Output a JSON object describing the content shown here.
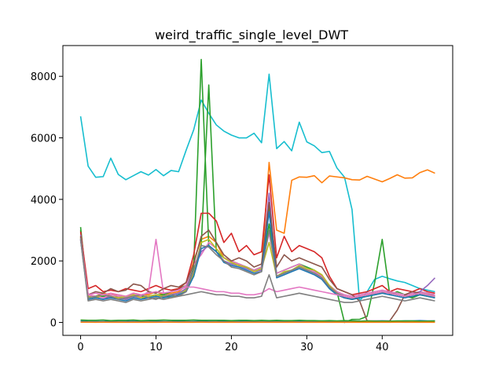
{
  "chart_data": {
    "type": "line",
    "title": "weird_traffic_single_level_DWT",
    "xlabel": "",
    "ylabel": "",
    "xlim": [
      -2.35,
      49.35
    ],
    "ylim": [
      -420,
      9000
    ],
    "xticks": [
      0,
      10,
      20,
      30,
      40
    ],
    "yticks": [
      0,
      2000,
      4000,
      6000,
      8000
    ],
    "xtick_labels": [
      "0",
      "10",
      "20",
      "30",
      "40"
    ],
    "ytick_labels": [
      "0",
      "2000",
      "4000",
      "6000",
      "8000"
    ],
    "grid": false,
    "legend": "none",
    "series": [
      {
        "color": "#17becf",
        "values": [
          6700,
          5080,
          4720,
          4740,
          5340,
          4810,
          4640,
          4770,
          4900,
          4790,
          4970,
          4770,
          4940,
          4900,
          5600,
          6260,
          7230,
          6800,
          6420,
          6220,
          6090,
          6000,
          6000,
          6150,
          5840,
          8070,
          5650,
          5880,
          5580,
          6510,
          5870,
          5740,
          5520,
          5560,
          5020,
          4720,
          3670,
          700,
          1000,
          1400,
          1500,
          1420,
          1350,
          1300,
          1200,
          1100,
          1050,
          1000
        ]
      },
      {
        "color": "#ff7f0e",
        "values": [
          2800,
          900,
          850,
          950,
          900,
          900,
          850,
          950,
          900,
          900,
          1000,
          900,
          950,
          1000,
          1200,
          2000,
          2700,
          2800,
          2600,
          2100,
          2000,
          1900,
          1800,
          1700,
          1800,
          5200,
          3000,
          2900,
          4620,
          4730,
          4720,
          4770,
          4540,
          4760,
          4730,
          4700,
          4640,
          4630,
          4750,
          4660,
          4570,
          4680,
          4800,
          4690,
          4700,
          4870,
          4960,
          4850
        ]
      },
      {
        "color": "#2ca02c",
        "values": [
          3000,
          800,
          850,
          900,
          800,
          850,
          800,
          900,
          850,
          850,
          900,
          900,
          1000,
          1100,
          1200,
          1800,
          8550,
          2500,
          2300,
          2100,
          2000,
          1900,
          1800,
          1700,
          1800,
          3200,
          1600,
          1700,
          1800,
          1900,
          1800,
          1700,
          1500,
          1200,
          1000,
          0,
          100,
          100,
          200,
          1300,
          2700,
          900,
          1000,
          900,
          800,
          1000,
          950,
          850
        ]
      },
      {
        "color": "#2ca02c",
        "values": [
          3100,
          750,
          800,
          850,
          800,
          800,
          750,
          850,
          800,
          800,
          850,
          800,
          900,
          950,
          1100,
          1500,
          2500,
          7720,
          2300,
          2000,
          1900,
          1850,
          1800,
          1700,
          1800,
          3800,
          1500,
          1600,
          1700,
          1800,
          1700,
          1600,
          1500,
          1100,
          900,
          800,
          750,
          800,
          850,
          900,
          950,
          1000,
          900,
          850,
          800,
          900,
          850,
          800
        ]
      },
      {
        "color": "#d62728",
        "values": [
          2950,
          1100,
          1200,
          1000,
          1050,
          1000,
          1100,
          1050,
          1000,
          1100,
          1200,
          1100,
          1050,
          1100,
          1300,
          2200,
          3550,
          3550,
          3300,
          2600,
          2900,
          2300,
          2500,
          2200,
          2300,
          4800,
          2100,
          2800,
          2300,
          2500,
          2400,
          2300,
          2100,
          1500,
          1100,
          1000,
          900,
          950,
          1000,
          1100,
          1200,
          1000,
          1100,
          1050,
          1000,
          1100,
          1000,
          950
        ]
      },
      {
        "color": "#e377c2",
        "values": [
          2700,
          900,
          850,
          800,
          900,
          850,
          800,
          900,
          850,
          1000,
          2700,
          950,
          1000,
          1050,
          1200,
          1900,
          2200,
          2600,
          2400,
          2100,
          2000,
          1900,
          1800,
          1700,
          1800,
          2900,
          1600,
          1700,
          1800,
          1900,
          1750,
          1650,
          1500,
          1200,
          1000,
          900,
          850,
          900,
          950,
          1000,
          1050,
          1000,
          950,
          900,
          950,
          1000,
          950,
          900
        ]
      },
      {
        "color": "#9467bd",
        "values": [
          2850,
          850,
          800,
          750,
          850,
          800,
          750,
          850,
          800,
          850,
          900,
          850,
          900,
          950,
          1100,
          1700,
          2300,
          2500,
          2300,
          2000,
          1900,
          1850,
          1750,
          1650,
          1700,
          4200,
          1500,
          1600,
          1700,
          1800,
          1700,
          1600,
          1450,
          1150,
          950,
          850,
          800,
          850,
          900,
          950,
          1000,
          950,
          900,
          850,
          900,
          1000,
          1200,
          1450
        ]
      },
      {
        "color": "#8c564b",
        "values": [
          2800,
          900,
          1000,
          950,
          1100,
          1000,
          1050,
          1250,
          1200,
          1000,
          950,
          1100,
          1200,
          1150,
          1300,
          1900,
          2800,
          3000,
          2600,
          2200,
          2000,
          2100,
          2000,
          1800,
          1900,
          3900,
          1800,
          2200,
          2000,
          2100,
          2000,
          1900,
          1800,
          1400,
          1100,
          1000,
          900,
          700,
          50,
          50,
          50,
          50,
          400,
          900,
          1000,
          950,
          900,
          850
        ]
      },
      {
        "color": "#bcbd22",
        "values": [
          2750,
          850,
          800,
          900,
          850,
          800,
          850,
          900,
          800,
          850,
          900,
          850,
          800,
          900,
          1050,
          1600,
          2600,
          2700,
          2400,
          2100,
          1950,
          1850,
          1800,
          1650,
          1750,
          2600,
          1500,
          1650,
          1700,
          1850,
          1750,
          1700,
          1550,
          1200,
          950,
          850,
          800,
          850,
          900,
          950,
          1000,
          950,
          900,
          850,
          900,
          950,
          900,
          850
        ]
      },
      {
        "color": "#1f77b4",
        "values": [
          2700,
          750,
          800,
          750,
          800,
          750,
          700,
          800,
          750,
          800,
          850,
          800,
          850,
          900,
          1000,
          1500,
          2400,
          2500,
          2300,
          1950,
          1850,
          1800,
          1700,
          1600,
          1650,
          3600,
          1450,
          1550,
          1650,
          1750,
          1650,
          1550,
          1400,
          1100,
          900,
          800,
          750,
          800,
          850,
          900,
          950,
          900,
          850,
          800,
          850,
          900,
          850,
          800
        ]
      },
      {
        "color": "#7f7f7f",
        "values": [
          2750,
          800,
          850,
          900,
          850,
          750,
          800,
          850,
          900,
          800,
          750,
          850,
          900,
          850,
          1000,
          1700,
          2500,
          2450,
          2200,
          2000,
          1800,
          1750,
          1650,
          1550,
          1650,
          3000,
          1500,
          1600,
          1700,
          1800,
          1700,
          1600,
          1450,
          1150,
          950,
          850,
          800,
          850,
          900,
          950,
          1000,
          950,
          900,
          850,
          900,
          950,
          900,
          850
        ]
      },
      {
        "color": "#e377c2",
        "values": [
          2700,
          900,
          950,
          900,
          950,
          900,
          850,
          950,
          900,
          950,
          1000,
          950,
          1000,
          1050,
          1150,
          1150,
          1100,
          1050,
          1000,
          1000,
          950,
          950,
          900,
          900,
          950,
          1100,
          1000,
          1050,
          1100,
          1150,
          1100,
          1050,
          1000,
          950,
          900,
          850,
          800,
          850,
          900,
          950,
          1000,
          950,
          900,
          850,
          900,
          950,
          900,
          850
        ]
      },
      {
        "color": "#7f7f7f",
        "values": [
          2700,
          700,
          750,
          700,
          750,
          700,
          650,
          750,
          700,
          750,
          800,
          750,
          800,
          850,
          900,
          950,
          1000,
          950,
          900,
          900,
          850,
          850,
          800,
          800,
          850,
          1550,
          800,
          850,
          900,
          950,
          900,
          850,
          800,
          750,
          700,
          650,
          650,
          700,
          750,
          800,
          850,
          800,
          750,
          700,
          750,
          800,
          750,
          700
        ]
      },
      {
        "color": "#1f77b4",
        "values": [
          50,
          30,
          30,
          30,
          40,
          30,
          30,
          40,
          30,
          30,
          40,
          30,
          30,
          40,
          30,
          30,
          40,
          30,
          30,
          40,
          30,
          30,
          40,
          30,
          30,
          30,
          40,
          30,
          30,
          40,
          30,
          40,
          50,
          40,
          30,
          40,
          50,
          40,
          30,
          40,
          50,
          40,
          40,
          50,
          50,
          60,
          50,
          50
        ]
      },
      {
        "color": "#2ca02c",
        "values": [
          80,
          70,
          70,
          80,
          60,
          70,
          70,
          80,
          60,
          70,
          70,
          80,
          70,
          70,
          70,
          80,
          70,
          70,
          70,
          70,
          60,
          70,
          70,
          60,
          70,
          60,
          70,
          60,
          60,
          70,
          60,
          60,
          50,
          60,
          50,
          60,
          50,
          40,
          50,
          40,
          40,
          40,
          50,
          50,
          50,
          40,
          40,
          50
        ]
      },
      {
        "color": "#ff7f0e",
        "values": [
          10,
          10,
          5,
          10,
          5,
          10,
          5,
          10,
          5,
          10,
          5,
          10,
          10,
          5,
          10,
          5,
          10,
          5,
          10,
          5,
          10,
          5,
          10,
          5,
          10,
          5,
          10,
          5,
          10,
          5,
          10,
          5,
          10,
          5,
          10,
          5,
          10,
          5,
          10,
          5,
          10,
          5,
          10,
          5,
          10,
          5,
          10,
          5
        ]
      }
    ]
  }
}
